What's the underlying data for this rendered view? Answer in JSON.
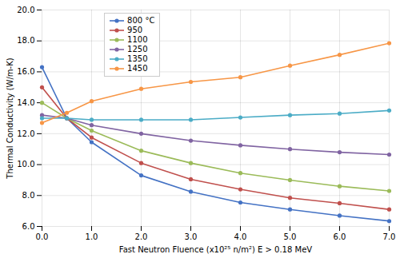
{
  "chart_data": {
    "type": "line",
    "xlabel": "Fast Neutron Fluence (x10²⁵ n/m²) E > 0.18 MeV",
    "ylabel": "Thermal Conductivity (W/m-K)",
    "x": [
      0.0,
      0.5,
      1.0,
      2.0,
      3.0,
      4.0,
      5.0,
      6.0,
      7.0
    ],
    "series": [
      {
        "name": "800 °C",
        "color": "#4472C4",
        "values": [
          16.3,
          13.0,
          11.45,
          9.3,
          8.25,
          7.55,
          7.1,
          6.7,
          6.35
        ]
      },
      {
        "name": "950",
        "color": "#C0504D",
        "values": [
          15.0,
          13.0,
          11.75,
          10.1,
          9.05,
          8.4,
          7.85,
          7.5,
          7.1
        ]
      },
      {
        "name": "1100",
        "color": "#9BBB59",
        "values": [
          14.0,
          13.0,
          12.2,
          10.9,
          10.1,
          9.45,
          9.0,
          8.6,
          8.3
        ]
      },
      {
        "name": "1250",
        "color": "#8064A2",
        "values": [
          13.2,
          13.0,
          12.55,
          12.0,
          11.55,
          11.25,
          11.0,
          10.8,
          10.65
        ]
      },
      {
        "name": "1350",
        "color": "#4BACC6",
        "values": [
          13.0,
          13.0,
          12.9,
          12.9,
          12.9,
          13.05,
          13.2,
          13.3,
          13.5
        ]
      },
      {
        "name": "1450",
        "color": "#F79646",
        "values": [
          12.7,
          13.35,
          14.1,
          14.9,
          15.35,
          15.65,
          16.4,
          17.1,
          17.85
        ]
      }
    ],
    "xlim": [
      0.0,
      7.0
    ],
    "ylim": [
      6.0,
      20.0
    ],
    "xticks": [
      {
        "value": 0,
        "label": "0.0"
      },
      {
        "value": 1,
        "label": "1.0"
      },
      {
        "value": 2,
        "label": "2.0"
      },
      {
        "value": 3,
        "label": "3.0"
      },
      {
        "value": 4,
        "label": "4.0"
      },
      {
        "value": 5,
        "label": "5.0"
      },
      {
        "value": 6,
        "label": "6.0"
      },
      {
        "value": 7,
        "label": "7.0"
      }
    ],
    "yticks": [
      {
        "value": 6,
        "label": "6.0"
      },
      {
        "value": 8,
        "label": "8.0"
      },
      {
        "value": 10,
        "label": "10.0"
      },
      {
        "value": 12,
        "label": "12.0"
      },
      {
        "value": 14,
        "label": "14.0"
      },
      {
        "value": 16,
        "label": "16.0"
      },
      {
        "value": 18,
        "label": "18.0"
      },
      {
        "value": 20,
        "label": "20.0"
      }
    ],
    "marker": "circle",
    "grid": true,
    "legend": "upper left"
  }
}
